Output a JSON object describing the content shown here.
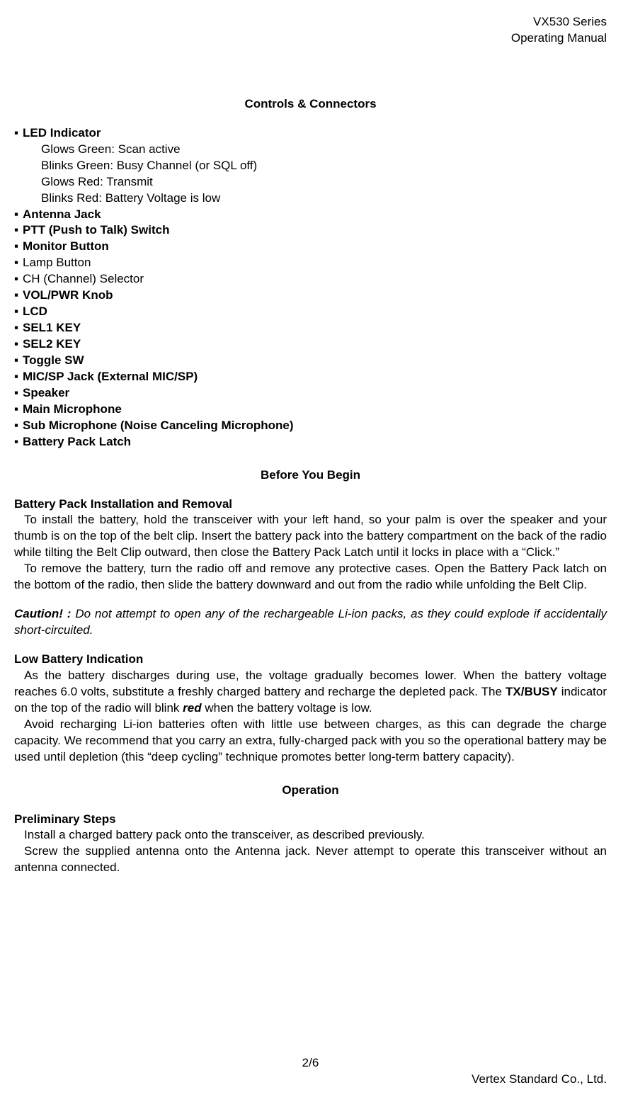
{
  "header": {
    "line1": "VX530 Series",
    "line2": "Operating Manual"
  },
  "section1_title": "Controls & Connectors",
  "controls": [
    {
      "text": "LED Indicator",
      "bold": true
    },
    {
      "sub": "Glows Green: Scan active"
    },
    {
      "sub": "Blinks Green: Busy Channel (or SQL off)"
    },
    {
      "sub": "Glows Red: Transmit"
    },
    {
      "sub": "Blinks Red: Battery Voltage is low"
    },
    {
      "text": "Antenna Jack",
      "bold": true
    },
    {
      "text": "PTT (Push to Talk) Switch",
      "bold": true
    },
    {
      "text": "Monitor Button",
      "bold": true
    },
    {
      "text": "Lamp Button",
      "bold": false
    },
    {
      "text": "CH (Channel) Selector",
      "bold": false
    },
    {
      "text": "VOL/PWR Knob",
      "bold": true
    },
    {
      "text": "LCD",
      "bold": true
    },
    {
      "text": "SEL1 KEY",
      "bold": true
    },
    {
      "text": "SEL2 KEY",
      "bold": true
    },
    {
      "text": "Toggle SW",
      "bold": true
    },
    {
      "text": "MIC/SP Jack (External MIC/SP)",
      "bold": true
    },
    {
      "text": "Speaker",
      "bold": true
    },
    {
      "text": "Main Microphone",
      "bold": true
    },
    {
      "text": "Sub Microphone (Noise Canceling Microphone)",
      "bold": true
    },
    {
      "text": "Battery Pack Latch",
      "bold": true
    }
  ],
  "section2_title": "Before You Begin",
  "battery_install_heading": "Battery Pack Installation and Removal",
  "battery_install_p1": "To install the battery, hold the transceiver with your left hand, so your palm is over the speaker and your thumb is on the top of the belt clip. Insert the battery pack into the battery compartment on the back of the radio while tilting the Belt Clip outward, then close the Battery Pack Latch until it locks in place with a “Click.”",
  "battery_install_p2": "To remove the battery, turn the radio off and remove any protective cases. Open the Battery Pack latch on the bottom of the radio, then slide the battery downward and out from the radio while unfolding the Belt Clip.",
  "caution_label": "Caution! :",
  "caution_text": " Do not attempt to open any of the rechargeable Li-ion packs, as they could explode if accidentally short-circuited.",
  "low_batt_heading": "Low Battery Indication",
  "low_batt_p1a": "As the battery discharges during use, the voltage gradually becomes lower. When the battery voltage reaches 6.0 volts, substitute a freshly charged battery and recharge the depleted pack. The ",
  "low_batt_txbusy": "TX/BUSY",
  "low_batt_p1b": " indicator on the top of the radio will blink ",
  "low_batt_red": "red",
  "low_batt_p1c": " when the battery voltage is low.",
  "low_batt_p2": "Avoid recharging Li-ion batteries often with little use between charges, as this can degrade the charge capacity. We recommend that you carry an extra, fully-charged pack with you so the operational battery may be used until depletion (this “deep cycling” technique promotes better long-term battery capacity).",
  "section3_title": "Operation",
  "prelim_heading": "Preliminary Steps",
  "prelim_p1": "Install a charged battery pack onto the transceiver, as described previously.",
  "prelim_p2": "Screw the supplied antenna onto the Antenna jack. Never attempt to operate this transceiver without an antenna connected.",
  "footer": {
    "page": "2/6",
    "company": "Vertex Standard Co., Ltd."
  },
  "bullet_glyph": "▪ "
}
